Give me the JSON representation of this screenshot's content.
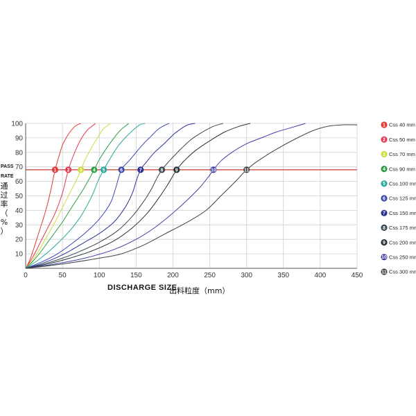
{
  "chart_data": {
    "type": "line",
    "xlabel": "DISCHARGE SIZE",
    "xlabel_cn": "出料粒度（mm）",
    "ylabel": [
      "PASS",
      "RATE"
    ],
    "ylabel_cn": [
      "通",
      "过",
      "率",
      "（",
      "%",
      "）"
    ],
    "xlim": [
      0,
      450
    ],
    "ylim": [
      0,
      100
    ],
    "xticks": [
      "0",
      "50",
      "100",
      "150",
      "200",
      "250",
      "300",
      "350",
      "400",
      "450"
    ],
    "yticks": [
      "10",
      "20",
      "30",
      "40",
      "50",
      "60",
      "70",
      "80",
      "90",
      "100"
    ],
    "grid": true,
    "reference_line": {
      "y": 68,
      "color": "#c0392b"
    },
    "legend_position": "right",
    "series": [
      {
        "id": "1",
        "name": "Css 40 mm",
        "color": "#e53935",
        "marker_x": 40,
        "points": [
          [
            0,
            0
          ],
          [
            5,
            5
          ],
          [
            10,
            12
          ],
          [
            15,
            20
          ],
          [
            20,
            28
          ],
          [
            25,
            36
          ],
          [
            30,
            45
          ],
          [
            35,
            56
          ],
          [
            40,
            68
          ],
          [
            45,
            77
          ],
          [
            50,
            85
          ],
          [
            55,
            90
          ],
          [
            60,
            94
          ],
          [
            65,
            97
          ],
          [
            70,
            99
          ],
          [
            75,
            100
          ]
        ]
      },
      {
        "id": "2",
        "name": "Css 50 mm",
        "color": "#e53950",
        "marker_x": 58,
        "points": [
          [
            0,
            0
          ],
          [
            10,
            8
          ],
          [
            20,
            18
          ],
          [
            30,
            28
          ],
          [
            40,
            38
          ],
          [
            50,
            52
          ],
          [
            58,
            68
          ],
          [
            65,
            78
          ],
          [
            70,
            84
          ],
          [
            75,
            89
          ],
          [
            80,
            93
          ],
          [
            85,
            96
          ],
          [
            90,
            98
          ],
          [
            95,
            100
          ]
        ]
      },
      {
        "id": "3",
        "name": "Css 70 mm",
        "color": "#cddc39",
        "marker_x": 75,
        "points": [
          [
            0,
            0
          ],
          [
            10,
            6
          ],
          [
            20,
            14
          ],
          [
            30,
            23
          ],
          [
            40,
            32
          ],
          [
            50,
            42
          ],
          [
            60,
            52
          ],
          [
            70,
            62
          ],
          [
            75,
            68
          ],
          [
            80,
            74
          ],
          [
            88,
            82
          ],
          [
            95,
            88
          ],
          [
            100,
            92
          ],
          [
            105,
            96
          ],
          [
            110,
            98
          ],
          [
            115,
            100
          ]
        ]
      },
      {
        "id": "4",
        "name": "Css 90 mm",
        "color": "#2e9e48",
        "marker_x": 93,
        "points": [
          [
            0,
            0
          ],
          [
            10,
            5
          ],
          [
            20,
            11
          ],
          [
            30,
            18
          ],
          [
            40,
            25
          ],
          [
            50,
            32
          ],
          [
            60,
            40
          ],
          [
            70,
            48
          ],
          [
            80,
            56
          ],
          [
            93,
            68
          ],
          [
            100,
            75
          ],
          [
            110,
            83
          ],
          [
            120,
            90
          ],
          [
            128,
            95
          ],
          [
            135,
            98
          ],
          [
            140,
            100
          ]
        ]
      },
      {
        "id": "5",
        "name": "Css 100 mm",
        "color": "#26a69a",
        "marker_x": 106,
        "points": [
          [
            0,
            0
          ],
          [
            15,
            5
          ],
          [
            30,
            11
          ],
          [
            45,
            18
          ],
          [
            60,
            26
          ],
          [
            75,
            36
          ],
          [
            90,
            50
          ],
          [
            98,
            60
          ],
          [
            106,
            68
          ],
          [
            115,
            76
          ],
          [
            125,
            84
          ],
          [
            135,
            90
          ],
          [
            145,
            95
          ],
          [
            155,
            99
          ],
          [
            162,
            100
          ]
        ]
      },
      {
        "id": "6",
        "name": "Css 125 mm",
        "color": "#3949ab",
        "marker_x": 130,
        "points": [
          [
            0,
            0
          ],
          [
            20,
            4
          ],
          [
            40,
            9
          ],
          [
            60,
            16
          ],
          [
            80,
            24
          ],
          [
            100,
            34
          ],
          [
            115,
            45
          ],
          [
            122,
            55
          ],
          [
            130,
            68
          ],
          [
            140,
            74
          ],
          [
            150,
            80
          ],
          [
            160,
            86
          ],
          [
            170,
            91
          ],
          [
            180,
            96
          ],
          [
            190,
            99
          ],
          [
            195,
            100
          ]
        ]
      },
      {
        "id": "7",
        "name": "Css 150 mm",
        "color": "#283593",
        "marker_x": 156,
        "points": [
          [
            0,
            0
          ],
          [
            20,
            3
          ],
          [
            40,
            7
          ],
          [
            60,
            12
          ],
          [
            80,
            18
          ],
          [
            100,
            24
          ],
          [
            120,
            32
          ],
          [
            135,
            42
          ],
          [
            145,
            52
          ],
          [
            150,
            60
          ],
          [
            156,
            68
          ],
          [
            165,
            74
          ],
          [
            175,
            80
          ],
          [
            188,
            86
          ],
          [
            200,
            92
          ],
          [
            210,
            96
          ],
          [
            220,
            99
          ],
          [
            230,
            100
          ]
        ]
      },
      {
        "id": "8",
        "name": "Css 175 mm",
        "color": "#37474f",
        "marker_x": 185,
        "points": [
          [
            0,
            0
          ],
          [
            25,
            3
          ],
          [
            50,
            7
          ],
          [
            75,
            12
          ],
          [
            100,
            18
          ],
          [
            125,
            26
          ],
          [
            145,
            36
          ],
          [
            160,
            46
          ],
          [
            170,
            54
          ],
          [
            178,
            62
          ],
          [
            185,
            68
          ],
          [
            195,
            74
          ],
          [
            210,
            82
          ],
          [
            225,
            89
          ],
          [
            240,
            94
          ],
          [
            255,
            98
          ],
          [
            268,
            100
          ]
        ]
      },
      {
        "id": "9",
        "name": "Css 200 mm",
        "color": "#263238",
        "marker_x": 205,
        "points": [
          [
            0,
            0
          ],
          [
            30,
            3
          ],
          [
            60,
            7
          ],
          [
            90,
            12
          ],
          [
            120,
            19
          ],
          [
            145,
            28
          ],
          [
            165,
            38
          ],
          [
            180,
            48
          ],
          [
            192,
            57
          ],
          [
            205,
            68
          ],
          [
            215,
            74
          ],
          [
            230,
            81
          ],
          [
            250,
            88
          ],
          [
            270,
            94
          ],
          [
            290,
            98
          ],
          [
            305,
            100
          ]
        ]
      },
      {
        "id": "10",
        "name": "Css 250 mm",
        "color": "#3f3fa5",
        "marker_x": 255,
        "points": [
          [
            0,
            0
          ],
          [
            40,
            3
          ],
          [
            80,
            7
          ],
          [
            120,
            13
          ],
          [
            150,
            20
          ],
          [
            175,
            28
          ],
          [
            195,
            36
          ],
          [
            215,
            45
          ],
          [
            235,
            55
          ],
          [
            248,
            63
          ],
          [
            255,
            68
          ],
          [
            265,
            74
          ],
          [
            280,
            80
          ],
          [
            300,
            86
          ],
          [
            320,
            90
          ],
          [
            340,
            94
          ],
          [
            360,
            97
          ],
          [
            380,
            100
          ]
        ]
      },
      {
        "id": "11",
        "name": "Css 300 mm",
        "color": "#424242",
        "marker_x": 300,
        "points": [
          [
            0,
            0
          ],
          [
            50,
            3
          ],
          [
            100,
            7
          ],
          [
            130,
            10
          ],
          [
            160,
            16
          ],
          [
            190,
            24
          ],
          [
            220,
            32
          ],
          [
            245,
            40
          ],
          [
            265,
            50
          ],
          [
            285,
            60
          ],
          [
            300,
            68
          ],
          [
            315,
            74
          ],
          [
            340,
            82
          ],
          [
            365,
            89
          ],
          [
            390,
            95
          ],
          [
            410,
            98
          ],
          [
            430,
            99
          ],
          [
            450,
            99
          ]
        ]
      }
    ]
  }
}
